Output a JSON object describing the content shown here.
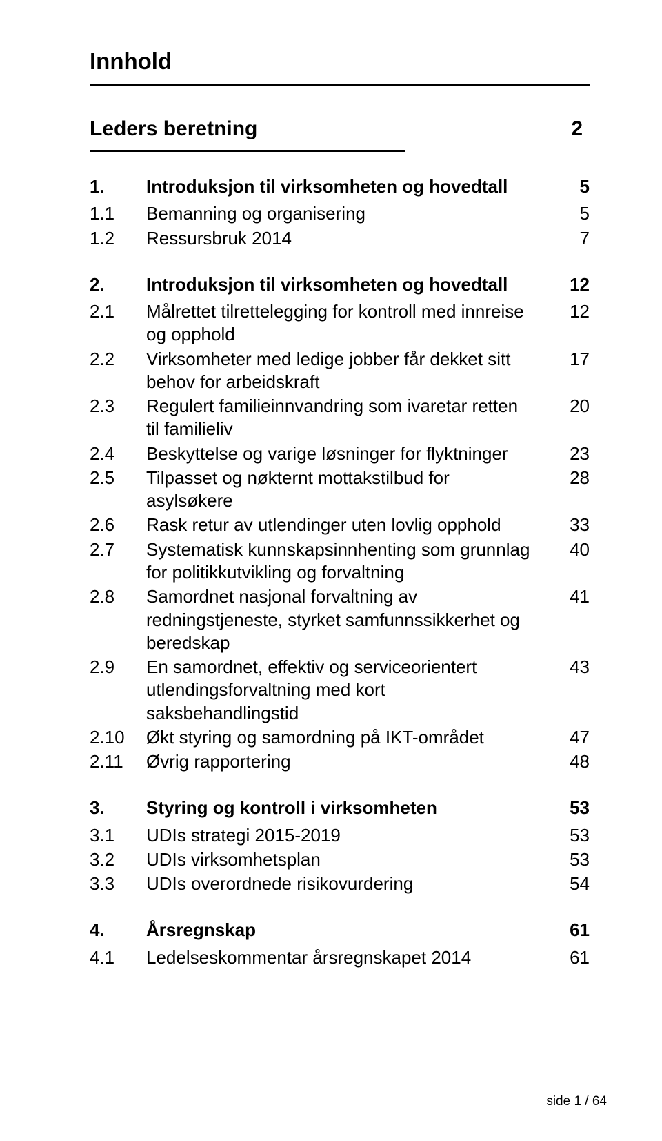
{
  "colors": {
    "text": "#000000",
    "background": "#ffffff",
    "rule": "#000000"
  },
  "typography": {
    "family": "Arial",
    "title_size_pt": 25,
    "body_size_pt": 20
  },
  "title": "Innhold",
  "leders": {
    "label": "Leders beretning",
    "page": "2"
  },
  "toc": [
    {
      "type": "head",
      "num": "1.",
      "label": "Introduksjon til virksomheten og hovedtall",
      "page": "5"
    },
    {
      "type": "sub",
      "num": "1.1",
      "label": "Bemanning og organisering",
      "page": "5"
    },
    {
      "type": "sub",
      "num": "1.2",
      "label": "Ressursbruk 2014",
      "page": "7"
    },
    {
      "type": "head",
      "num": "2.",
      "label": "Introduksjon til virksomheten og hovedtall",
      "page": "12"
    },
    {
      "type": "sub",
      "num": "2.1",
      "label": "Målrettet tilrettelegging for kontroll med innreise og opphold",
      "page": "12"
    },
    {
      "type": "sub",
      "num": "2.2",
      "label": "Virksomheter med ledige jobber får dekket sitt behov for arbeidskraft",
      "page": "17"
    },
    {
      "type": "sub",
      "num": "2.3",
      "label": "Regulert familieinnvandring som ivaretar retten til familieliv",
      "page": "20"
    },
    {
      "type": "sub",
      "num": "2.4",
      "label": "Beskyttelse og varige løsninger for flyktninger",
      "page": "23"
    },
    {
      "type": "sub",
      "num": "2.5",
      "label": "Tilpasset og nøkternt mottakstilbud for asylsøkere",
      "page": "28"
    },
    {
      "type": "sub",
      "num": "2.6",
      "label": "Rask retur av utlendinger uten lovlig opphold",
      "page": "33"
    },
    {
      "type": "sub",
      "num": "2.7",
      "label": "Systematisk kunnskapsinnhenting som grunnlag for politikkutvikling og forvaltning",
      "page": "40"
    },
    {
      "type": "sub",
      "num": "2.8",
      "label": "Samordnet nasjonal forvaltning av redningstjeneste, styrket samfunnssikkerhet og beredskap",
      "page": "41"
    },
    {
      "type": "sub",
      "num": "2.9",
      "label": "En samordnet, effektiv og serviceorientert utlendingsforvaltning med kort saksbehandlingstid",
      "page": "43"
    },
    {
      "type": "sub",
      "num": "2.10",
      "label": "Økt styring og samordning på IKT-området",
      "page": "47"
    },
    {
      "type": "sub",
      "num": "2.11",
      "label": "Øvrig rapportering",
      "page": "48"
    },
    {
      "type": "head",
      "num": "3.",
      "label": "Styring og kontroll i virksomheten",
      "page": "53"
    },
    {
      "type": "sub",
      "num": "3.1",
      "label": "UDIs strategi 2015-2019",
      "page": "53"
    },
    {
      "type": "sub",
      "num": "3.2",
      "label": "UDIs virksomhetsplan",
      "page": "53"
    },
    {
      "type": "sub",
      "num": "3.3",
      "label": "UDIs overordnede risikovurdering",
      "page": "54"
    },
    {
      "type": "head",
      "num": "4.",
      "label": "Årsregnskap",
      "page": "61"
    },
    {
      "type": "sub",
      "num": "4.1",
      "label": "Ledelseskommentar årsregnskapet 2014",
      "page": "61"
    }
  ],
  "footer": "side 1 / 64"
}
